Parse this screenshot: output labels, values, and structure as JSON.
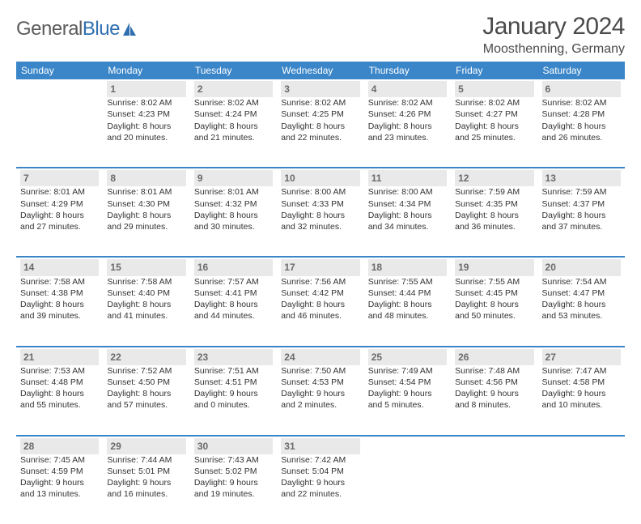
{
  "logo": {
    "word1": "General",
    "word2": "Blue"
  },
  "title": "January 2024",
  "location": "Moosthenning, Germany",
  "colors": {
    "header_bg": "#3b86c8",
    "header_text": "#ffffff",
    "daynum_bg": "#e9e9e9",
    "daynum_text": "#6a6a6a",
    "body_text": "#333333",
    "divider": "#3b86c8",
    "page_bg": "#ffffff",
    "logo_grey": "#5c5c5c",
    "logo_blue": "#2f6fb0"
  },
  "layout": {
    "columns": 7,
    "rows": 5,
    "cell_fontsize_pt": 8,
    "header_fontsize_pt": 9
  },
  "weekday_headers": [
    "Sunday",
    "Monday",
    "Tuesday",
    "Wednesday",
    "Thursday",
    "Friday",
    "Saturday"
  ],
  "weeks": [
    {
      "days": [
        {
          "num": "",
          "lines": [
            "",
            "",
            "",
            ""
          ]
        },
        {
          "num": "1",
          "lines": [
            "Sunrise: 8:02 AM",
            "Sunset: 4:23 PM",
            "Daylight: 8 hours",
            "and 20 minutes."
          ]
        },
        {
          "num": "2",
          "lines": [
            "Sunrise: 8:02 AM",
            "Sunset: 4:24 PM",
            "Daylight: 8 hours",
            "and 21 minutes."
          ]
        },
        {
          "num": "3",
          "lines": [
            "Sunrise: 8:02 AM",
            "Sunset: 4:25 PM",
            "Daylight: 8 hours",
            "and 22 minutes."
          ]
        },
        {
          "num": "4",
          "lines": [
            "Sunrise: 8:02 AM",
            "Sunset: 4:26 PM",
            "Daylight: 8 hours",
            "and 23 minutes."
          ]
        },
        {
          "num": "5",
          "lines": [
            "Sunrise: 8:02 AM",
            "Sunset: 4:27 PM",
            "Daylight: 8 hours",
            "and 25 minutes."
          ]
        },
        {
          "num": "6",
          "lines": [
            "Sunrise: 8:02 AM",
            "Sunset: 4:28 PM",
            "Daylight: 8 hours",
            "and 26 minutes."
          ]
        }
      ]
    },
    {
      "days": [
        {
          "num": "7",
          "lines": [
            "Sunrise: 8:01 AM",
            "Sunset: 4:29 PM",
            "Daylight: 8 hours",
            "and 27 minutes."
          ]
        },
        {
          "num": "8",
          "lines": [
            "Sunrise: 8:01 AM",
            "Sunset: 4:30 PM",
            "Daylight: 8 hours",
            "and 29 minutes."
          ]
        },
        {
          "num": "9",
          "lines": [
            "Sunrise: 8:01 AM",
            "Sunset: 4:32 PM",
            "Daylight: 8 hours",
            "and 30 minutes."
          ]
        },
        {
          "num": "10",
          "lines": [
            "Sunrise: 8:00 AM",
            "Sunset: 4:33 PM",
            "Daylight: 8 hours",
            "and 32 minutes."
          ]
        },
        {
          "num": "11",
          "lines": [
            "Sunrise: 8:00 AM",
            "Sunset: 4:34 PM",
            "Daylight: 8 hours",
            "and 34 minutes."
          ]
        },
        {
          "num": "12",
          "lines": [
            "Sunrise: 7:59 AM",
            "Sunset: 4:35 PM",
            "Daylight: 8 hours",
            "and 36 minutes."
          ]
        },
        {
          "num": "13",
          "lines": [
            "Sunrise: 7:59 AM",
            "Sunset: 4:37 PM",
            "Daylight: 8 hours",
            "and 37 minutes."
          ]
        }
      ]
    },
    {
      "days": [
        {
          "num": "14",
          "lines": [
            "Sunrise: 7:58 AM",
            "Sunset: 4:38 PM",
            "Daylight: 8 hours",
            "and 39 minutes."
          ]
        },
        {
          "num": "15",
          "lines": [
            "Sunrise: 7:58 AM",
            "Sunset: 4:40 PM",
            "Daylight: 8 hours",
            "and 41 minutes."
          ]
        },
        {
          "num": "16",
          "lines": [
            "Sunrise: 7:57 AM",
            "Sunset: 4:41 PM",
            "Daylight: 8 hours",
            "and 44 minutes."
          ]
        },
        {
          "num": "17",
          "lines": [
            "Sunrise: 7:56 AM",
            "Sunset: 4:42 PM",
            "Daylight: 8 hours",
            "and 46 minutes."
          ]
        },
        {
          "num": "18",
          "lines": [
            "Sunrise: 7:55 AM",
            "Sunset: 4:44 PM",
            "Daylight: 8 hours",
            "and 48 minutes."
          ]
        },
        {
          "num": "19",
          "lines": [
            "Sunrise: 7:55 AM",
            "Sunset: 4:45 PM",
            "Daylight: 8 hours",
            "and 50 minutes."
          ]
        },
        {
          "num": "20",
          "lines": [
            "Sunrise: 7:54 AM",
            "Sunset: 4:47 PM",
            "Daylight: 8 hours",
            "and 53 minutes."
          ]
        }
      ]
    },
    {
      "days": [
        {
          "num": "21",
          "lines": [
            "Sunrise: 7:53 AM",
            "Sunset: 4:48 PM",
            "Daylight: 8 hours",
            "and 55 minutes."
          ]
        },
        {
          "num": "22",
          "lines": [
            "Sunrise: 7:52 AM",
            "Sunset: 4:50 PM",
            "Daylight: 8 hours",
            "and 57 minutes."
          ]
        },
        {
          "num": "23",
          "lines": [
            "Sunrise: 7:51 AM",
            "Sunset: 4:51 PM",
            "Daylight: 9 hours",
            "and 0 minutes."
          ]
        },
        {
          "num": "24",
          "lines": [
            "Sunrise: 7:50 AM",
            "Sunset: 4:53 PM",
            "Daylight: 9 hours",
            "and 2 minutes."
          ]
        },
        {
          "num": "25",
          "lines": [
            "Sunrise: 7:49 AM",
            "Sunset: 4:54 PM",
            "Daylight: 9 hours",
            "and 5 minutes."
          ]
        },
        {
          "num": "26",
          "lines": [
            "Sunrise: 7:48 AM",
            "Sunset: 4:56 PM",
            "Daylight: 9 hours",
            "and 8 minutes."
          ]
        },
        {
          "num": "27",
          "lines": [
            "Sunrise: 7:47 AM",
            "Sunset: 4:58 PM",
            "Daylight: 9 hours",
            "and 10 minutes."
          ]
        }
      ]
    },
    {
      "days": [
        {
          "num": "28",
          "lines": [
            "Sunrise: 7:45 AM",
            "Sunset: 4:59 PM",
            "Daylight: 9 hours",
            "and 13 minutes."
          ]
        },
        {
          "num": "29",
          "lines": [
            "Sunrise: 7:44 AM",
            "Sunset: 5:01 PM",
            "Daylight: 9 hours",
            "and 16 minutes."
          ]
        },
        {
          "num": "30",
          "lines": [
            "Sunrise: 7:43 AM",
            "Sunset: 5:02 PM",
            "Daylight: 9 hours",
            "and 19 minutes."
          ]
        },
        {
          "num": "31",
          "lines": [
            "Sunrise: 7:42 AM",
            "Sunset: 5:04 PM",
            "Daylight: 9 hours",
            "and 22 minutes."
          ]
        },
        {
          "num": "",
          "lines": [
            "",
            "",
            "",
            ""
          ]
        },
        {
          "num": "",
          "lines": [
            "",
            "",
            "",
            ""
          ]
        },
        {
          "num": "",
          "lines": [
            "",
            "",
            "",
            ""
          ]
        }
      ]
    }
  ]
}
